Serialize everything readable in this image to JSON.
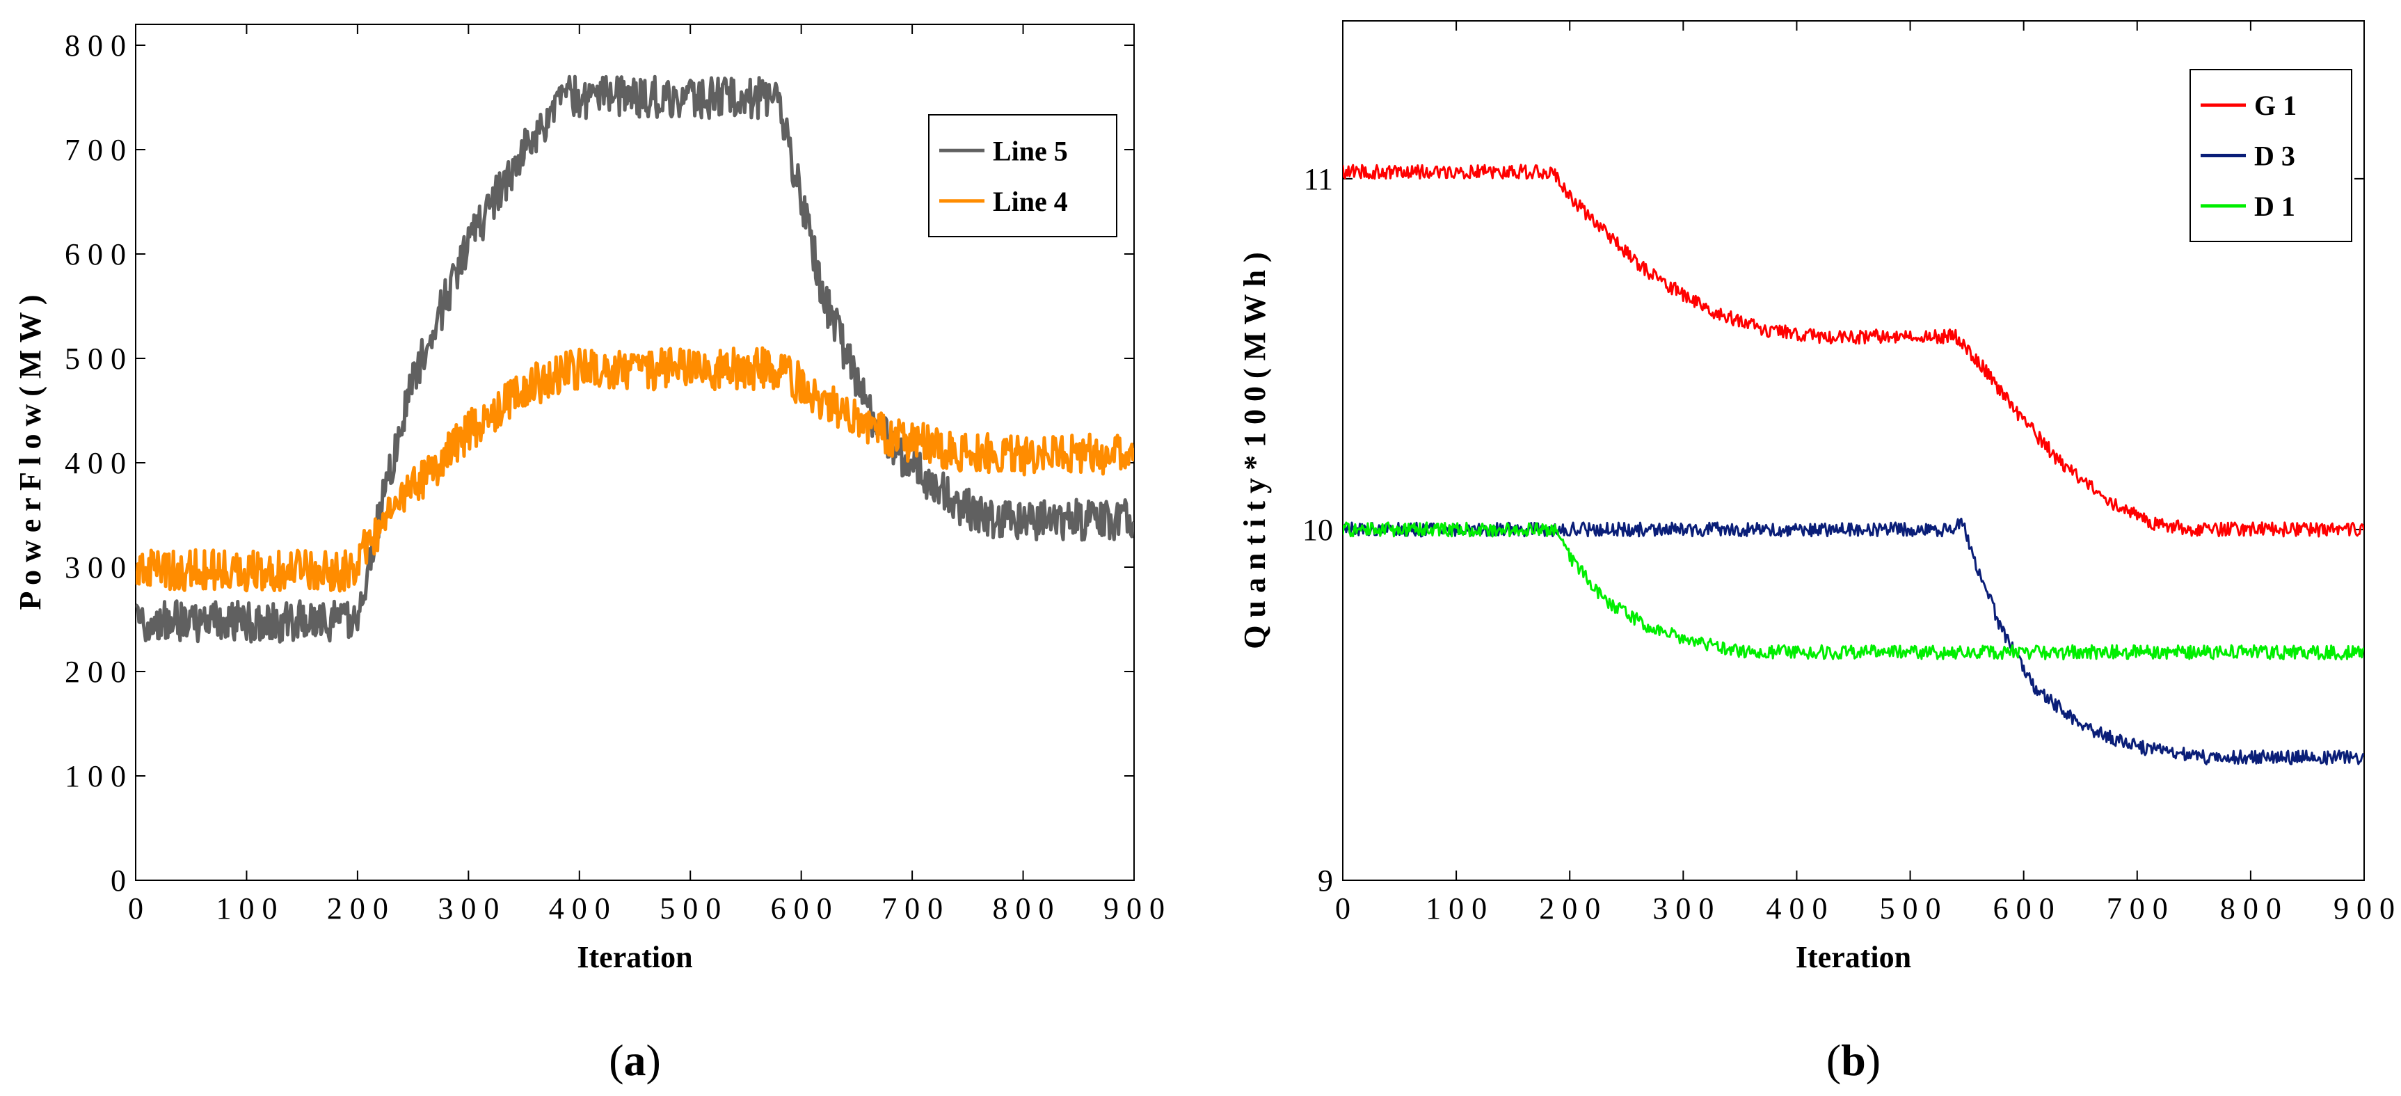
{
  "chart_data": [
    {
      "id": "a",
      "type": "line",
      "panel_label": "(a)",
      "panel_letter": "a",
      "title": "",
      "xlabel": "Iteration",
      "ylabel": "P o w e r  F l o w ( M W )",
      "xlim": [
        0,
        900
      ],
      "ylim": [
        0,
        820
      ],
      "xticks": [
        0,
        100,
        200,
        300,
        400,
        500,
        600,
        700,
        800,
        900
      ],
      "xtick_labels": [
        "0",
        "1 0 0",
        "2 0 0",
        "3 0 0",
        "4 0 0",
        "5 0 0",
        "6 0 0",
        "7 0 0",
        "8 0 0",
        "9 0 0"
      ],
      "yticks": [
        0,
        100,
        200,
        300,
        400,
        500,
        600,
        700,
        800
      ],
      "ytick_labels": [
        "0",
        "1 0 0",
        "2 0 0",
        "3 0 0",
        "4 0 0",
        "5 0 0",
        "6 0 0",
        "7 0 0",
        "8 0 0"
      ],
      "legend_position": "top-right",
      "noise_amplitude": 20,
      "series": [
        {
          "name": "Line 5",
          "color": "#606060",
          "width": 5,
          "knots": [
            [
              0,
              248
            ],
            [
              200,
              248
            ],
            [
              215,
              330
            ],
            [
              250,
              480
            ],
            [
              300,
              610
            ],
            [
              350,
              700
            ],
            [
              385,
              750
            ],
            [
              570,
              750
            ],
            [
              580,
              745
            ],
            [
              620,
              560
            ],
            [
              660,
              450
            ],
            [
              700,
              395
            ],
            [
              740,
              360
            ],
            [
              780,
              345
            ],
            [
              900,
              345
            ]
          ]
        },
        {
          "name": "Line 4",
          "color": "#ff8c00",
          "width": 5,
          "knots": [
            [
              0,
              297
            ],
            [
              195,
              297
            ],
            [
              215,
              330
            ],
            [
              250,
              375
            ],
            [
              300,
              430
            ],
            [
              350,
              470
            ],
            [
              390,
              490
            ],
            [
              575,
              490
            ],
            [
              600,
              475
            ],
            [
              640,
              445
            ],
            [
              680,
              425
            ],
            [
              720,
              415
            ],
            [
              760,
              408
            ],
            [
              900,
              408
            ]
          ]
        }
      ]
    },
    {
      "id": "b",
      "type": "line",
      "panel_label": "(b)",
      "panel_letter": "b",
      "title": "",
      "xlabel": "Iteration",
      "ylabel": "Q u a n t i t y * 1 0 0 ( M W h )",
      "xlim": [
        0,
        900
      ],
      "ylim": [
        9,
        11.45
      ],
      "xticks": [
        0,
        100,
        200,
        300,
        400,
        500,
        600,
        700,
        800,
        900
      ],
      "xtick_labels": [
        "0",
        "1 0 0",
        "2 0 0",
        "3 0 0",
        "4 0 0",
        "5 0 0",
        "6 0 0",
        "7 0 0",
        "8 0 0",
        "9 0 0"
      ],
      "yticks": [
        9,
        10,
        11
      ],
      "ytick_labels": [
        "9",
        "10",
        "11"
      ],
      "legend_position": "top-right",
      "noise_amplitude": 0.02,
      "series": [
        {
          "name": "G 1",
          "color": "#ff0000",
          "width": 3,
          "knots": [
            [
              0,
              11.02
            ],
            [
              185,
              11.02
            ],
            [
              200,
              10.95
            ],
            [
              230,
              10.85
            ],
            [
              270,
              10.73
            ],
            [
              320,
              10.63
            ],
            [
              370,
              10.57
            ],
            [
              420,
              10.55
            ],
            [
              540,
              10.55
            ],
            [
              560,
              10.48
            ],
            [
              590,
              10.35
            ],
            [
              630,
              10.2
            ],
            [
              670,
              10.09
            ],
            [
              710,
              10.02
            ],
            [
              750,
              10.0
            ],
            [
              900,
              10.0
            ]
          ]
        },
        {
          "name": "D 3",
          "color": "#0a1e78",
          "width": 3,
          "knots": [
            [
              0,
              10.0
            ],
            [
              540,
              10.0
            ],
            [
              545,
              10.03
            ],
            [
              555,
              9.93
            ],
            [
              580,
              9.72
            ],
            [
              610,
              9.55
            ],
            [
              650,
              9.44
            ],
            [
              700,
              9.38
            ],
            [
              760,
              9.35
            ],
            [
              900,
              9.35
            ]
          ]
        },
        {
          "name": "D 1",
          "color": "#00ee00",
          "width": 3,
          "knots": [
            [
              0,
              10.0
            ],
            [
              190,
              10.0
            ],
            [
              200,
              9.92
            ],
            [
              230,
              9.8
            ],
            [
              270,
              9.72
            ],
            [
              310,
              9.68
            ],
            [
              360,
              9.65
            ],
            [
              900,
              9.65
            ]
          ]
        }
      ]
    }
  ]
}
